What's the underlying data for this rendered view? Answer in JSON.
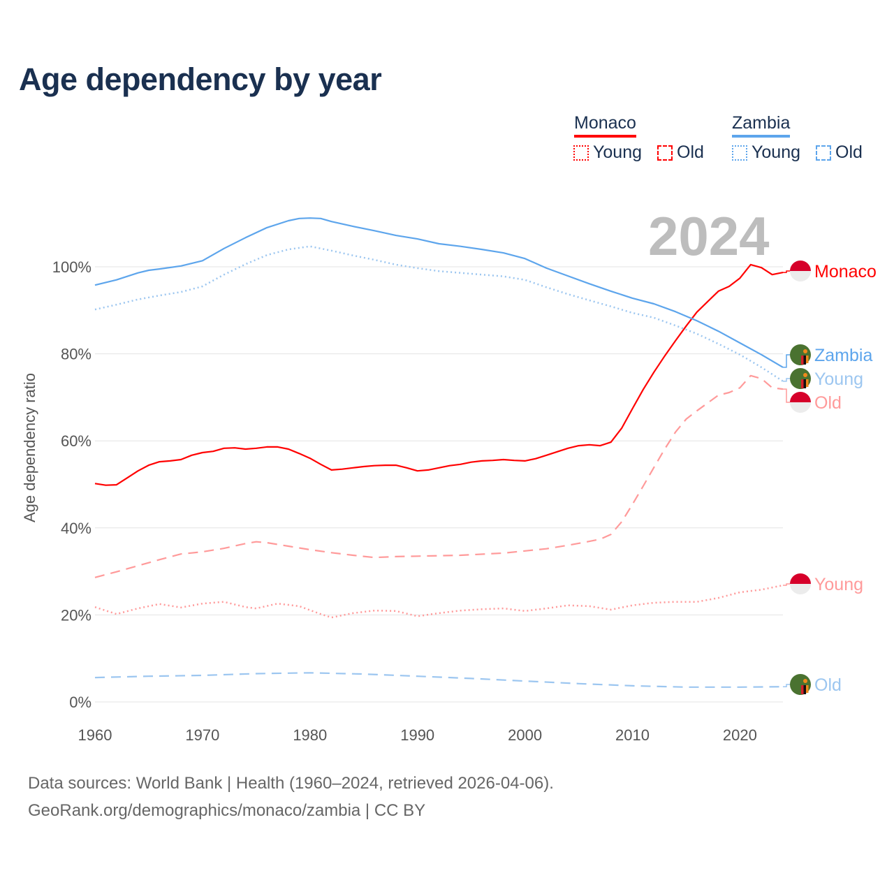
{
  "title": "Age dependency by year",
  "current_year": "2024",
  "legend": {
    "countries": [
      {
        "name": "Monaco",
        "color": "#ff0000",
        "items": [
          "Young",
          "Old"
        ]
      },
      {
        "name": "Zambia",
        "color": "#5da5ec",
        "items": [
          "Young",
          "Old"
        ]
      }
    ]
  },
  "footer": {
    "line1": "Data sources: World Bank | Health (1960–2024, retrieved 2026-04-06).",
    "line2": "GeoRank.org/demographics/monaco/zambia | CC BY"
  },
  "chart_data": {
    "type": "line",
    "title": "Age dependency by year",
    "xlabel": "",
    "ylabel": "Age dependency ratio",
    "xlim": [
      1960,
      2024
    ],
    "ylim": [
      0,
      112
    ],
    "xticks": [
      "1960",
      "1970",
      "1980",
      "1990",
      "2000",
      "2010",
      "2020"
    ],
    "yticks": [
      "0%",
      "20%",
      "40%",
      "60%",
      "80%",
      "100%"
    ],
    "grid": true,
    "legend_position": "top-right",
    "series": [
      {
        "name": "Monaco",
        "end_label": "Monaco",
        "country": "Monaco",
        "style": "solid",
        "color": "#ff0000",
        "x": [
          1960,
          1961,
          1962,
          1963,
          1964,
          1965,
          1966,
          1967,
          1968,
          1969,
          1970,
          1971,
          1972,
          1973,
          1974,
          1975,
          1976,
          1977,
          1978,
          1979,
          1980,
          1981,
          1982,
          1983,
          1984,
          1985,
          1986,
          1987,
          1988,
          1989,
          1990,
          1991,
          1992,
          1993,
          1994,
          1995,
          1996,
          1997,
          1998,
          1999,
          2000,
          2001,
          2002,
          2003,
          2004,
          2005,
          2006,
          2007,
          2008,
          2009,
          2010,
          2011,
          2012,
          2013,
          2014,
          2015,
          2016,
          2017,
          2018,
          2019,
          2020,
          2021,
          2022,
          2023,
          2024
        ],
        "y": [
          50.2,
          49.8,
          49.9,
          51.5,
          53.1,
          54.4,
          55.2,
          55.4,
          55.7,
          56.7,
          57.3,
          57.6,
          58.3,
          58.4,
          58.1,
          58.3,
          58.6,
          58.6,
          58.1,
          57.1,
          56.0,
          54.6,
          53.3,
          53.5,
          53.8,
          54.1,
          54.3,
          54.4,
          54.4,
          53.8,
          53.1,
          53.3,
          53.8,
          54.3,
          54.6,
          55.1,
          55.4,
          55.5,
          55.7,
          55.5,
          55.4,
          55.9,
          56.7,
          57.5,
          58.3,
          58.9,
          59.1,
          58.9,
          59.7,
          62.9,
          67.4,
          71.8,
          75.8,
          79.5,
          83.0,
          86.4,
          89.6,
          92.0,
          94.4,
          95.5,
          97.4,
          100.5,
          99.8,
          98.2,
          98.7
        ]
      },
      {
        "name": "Monaco Old",
        "end_label": "Old",
        "country": "Monaco",
        "style": "dashed",
        "color": "#ff9a9a",
        "x": [
          1960,
          1962,
          1964,
          1966,
          1968,
          1970,
          1972,
          1974,
          1975,
          1976,
          1978,
          1980,
          1982,
          1984,
          1986,
          1988,
          1990,
          1994,
          1998,
          2000,
          2002,
          2004,
          2006,
          2007,
          2008,
          2009,
          2010,
          2011,
          2012,
          2013,
          2014,
          2015,
          2016,
          2017,
          2018,
          2019,
          2020,
          2021,
          2022,
          2023,
          2024
        ],
        "y": [
          28.6,
          29.9,
          31.3,
          32.7,
          34.0,
          34.5,
          35.3,
          36.4,
          36.8,
          36.6,
          35.8,
          35.0,
          34.3,
          33.7,
          33.2,
          33.4,
          33.5,
          33.7,
          34.2,
          34.7,
          35.2,
          36.0,
          36.9,
          37.4,
          38.5,
          41.4,
          45.4,
          49.6,
          53.9,
          58.1,
          62.0,
          65.0,
          66.9,
          68.7,
          70.5,
          71.1,
          72.2,
          75.0,
          74.3,
          72.2,
          71.9
        ]
      },
      {
        "name": "Monaco Young",
        "end_label": "Young",
        "country": "Monaco",
        "style": "dotted",
        "color": "#ff9a9a",
        "x": [
          1960,
          1962,
          1964,
          1966,
          1968,
          1970,
          1972,
          1974,
          1975,
          1977,
          1979,
          1981,
          1982,
          1984,
          1986,
          1988,
          1990,
          1992,
          1994,
          1996,
          1998,
          2000,
          2002,
          2004,
          2006,
          2008,
          2010,
          2012,
          2014,
          2016,
          2018,
          2020,
          2022,
          2024
        ],
        "y": [
          21.8,
          20.2,
          21.5,
          22.5,
          21.7,
          22.6,
          23.0,
          21.8,
          21.5,
          22.6,
          22.0,
          20.2,
          19.4,
          20.4,
          21.0,
          20.9,
          19.7,
          20.4,
          21.0,
          21.3,
          21.5,
          20.9,
          21.5,
          22.2,
          22.0,
          21.2,
          22.2,
          22.8,
          23.0,
          23.0,
          23.9,
          25.2,
          25.8,
          26.8
        ]
      },
      {
        "name": "Zambia",
        "end_label": "Zambia",
        "country": "Zambia",
        "style": "solid",
        "color": "#5da5ec",
        "x": [
          1960,
          1962,
          1964,
          1965,
          1966,
          1968,
          1970,
          1972,
          1974,
          1976,
          1978,
          1979,
          1980,
          1981,
          1982,
          1984,
          1986,
          1988,
          1990,
          1992,
          1994,
          1996,
          1998,
          2000,
          2002,
          2004,
          2006,
          2008,
          2010,
          2012,
          2014,
          2016,
          2018,
          2020,
          2022,
          2024
        ],
        "y": [
          95.8,
          97.0,
          98.6,
          99.2,
          99.5,
          100.2,
          101.4,
          104.2,
          106.7,
          109.0,
          110.6,
          111.1,
          111.2,
          111.1,
          110.4,
          109.3,
          108.3,
          107.2,
          106.4,
          105.3,
          104.7,
          104.0,
          103.2,
          101.9,
          99.7,
          97.9,
          96.1,
          94.4,
          92.8,
          91.5,
          89.7,
          87.6,
          85.2,
          82.5,
          79.8,
          76.9
        ]
      },
      {
        "name": "Zambia Young",
        "end_label": "Young",
        "country": "Zambia",
        "style": "dotted",
        "color": "#9cc6f0",
        "x": [
          1960,
          1962,
          1964,
          1966,
          1968,
          1970,
          1972,
          1974,
          1976,
          1978,
          1980,
          1982,
          1984,
          1986,
          1988,
          1990,
          1992,
          1994,
          1996,
          1998,
          2000,
          2002,
          2004,
          2006,
          2008,
          2010,
          2012,
          2014,
          2016,
          2018,
          2020,
          2022,
          2024
        ],
        "y": [
          90.2,
          91.3,
          92.5,
          93.4,
          94.2,
          95.5,
          98.2,
          100.6,
          102.7,
          104.0,
          104.7,
          103.7,
          102.6,
          101.6,
          100.5,
          99.7,
          99.0,
          98.6,
          98.2,
          97.8,
          97.0,
          95.3,
          93.7,
          92.3,
          90.9,
          89.4,
          88.3,
          86.5,
          84.6,
          82.3,
          79.8,
          76.9,
          73.7
        ]
      },
      {
        "name": "Zambia Old",
        "end_label": "Old",
        "country": "Zambia",
        "style": "dashed",
        "color": "#9cc6f0",
        "x": [
          1960,
          1965,
          1970,
          1975,
          1980,
          1985,
          1990,
          1995,
          2000,
          2005,
          2010,
          2015,
          2020,
          2024
        ],
        "y": [
          5.6,
          5.9,
          6.1,
          6.5,
          6.7,
          6.4,
          5.9,
          5.4,
          4.8,
          4.2,
          3.7,
          3.4,
          3.4,
          3.5
        ]
      }
    ]
  }
}
